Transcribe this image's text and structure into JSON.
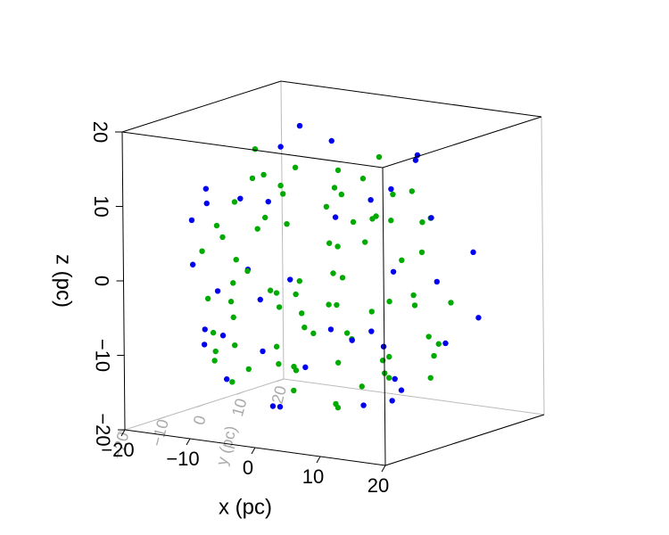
{
  "chart_data": {
    "type": "scatter3d",
    "xlabel": "x (pc)",
    "ylabel": "y (pc)",
    "zlabel": "z (pc)",
    "xlim": [
      -20,
      20
    ],
    "ylim": [
      -20,
      20
    ],
    "zlim": [
      -20,
      20
    ],
    "xticks": [
      {
        "value": -20,
        "label": "−20"
      },
      {
        "value": -10,
        "label": "−10"
      },
      0,
      10,
      20
    ],
    "yticks": [
      {
        "value": -20,
        "label": "−20"
      },
      {
        "value": -10,
        "label": "−10"
      },
      0,
      10,
      20
    ],
    "zticks": [
      {
        "value": -20,
        "label": "−20"
      },
      {
        "value": -10,
        "label": "−10"
      },
      0,
      10,
      20
    ],
    "series": [
      {
        "color": "#00aa00",
        "x": [
          0,
          5,
          -7,
          10,
          -12,
          3,
          -4,
          14,
          -9,
          6,
          -2,
          11,
          -15,
          8,
          -5,
          1,
          -10,
          13,
          -3,
          7,
          -13,
          2,
          -8,
          15,
          -1,
          9,
          -11,
          4,
          -6,
          12,
          -14,
          0,
          6,
          -9,
          16,
          -3,
          10,
          -16,
          3,
          -7,
          8,
          -12,
          1,
          -4,
          14,
          -10,
          5,
          -15,
          11,
          -2,
          7,
          -8,
          13,
          -5,
          2,
          -11,
          9,
          -13,
          4,
          -6,
          12,
          -1,
          15,
          -9,
          6,
          -14,
          3,
          -7,
          10,
          -3,
          8,
          -12,
          0,
          -5,
          16,
          -10,
          4,
          -16,
          11,
          -4
        ],
        "y": [
          0,
          -3,
          2,
          6,
          -5,
          -10,
          8,
          1,
          -11,
          4,
          -6,
          -8,
          3,
          -12,
          -2,
          13,
          9,
          -4,
          -14,
          9,
          -9,
          -1,
          -7,
          5,
          5,
          -2,
          1,
          -15,
          11,
          -10,
          -2,
          -8,
          2,
          -13,
          -6,
          4,
          10,
          -3,
          -4,
          -10,
          -5,
          6,
          -16,
          -5,
          -9,
          -3,
          7,
          -7,
          2,
          -11,
          -13,
          3,
          3,
          -17,
          9,
          -12,
          -7,
          4,
          -2,
          -6,
          5,
          2,
          -2,
          -15,
          -9,
          -10,
          6,
          -1,
          -14,
          -9,
          1,
          -6,
          -13,
          7,
          -1,
          -8,
          -6,
          1,
          -11,
          -3
        ],
        "z": [
          0,
          8,
          -4,
          3,
          9,
          -6,
          12,
          -7,
          -3,
          -14,
          15,
          10,
          -2,
          -9,
          -16,
          5,
          -10,
          4,
          8,
          -5,
          -8,
          11,
          13,
          -3,
          -9,
          -12,
          6,
          2,
          1,
          -2,
          -11,
          -4,
          16,
          6,
          0,
          3,
          -10,
          5,
          -17,
          -12,
          6,
          -7,
          -7,
          7,
          -8,
          16,
          10,
          -4,
          12,
          -1,
          12,
          -14,
          -13,
          1,
          -13,
          -11,
          15,
          11,
          -8,
          -2,
          8,
          -18,
          9,
          -9,
          -2,
          3,
          7,
          10,
          3,
          -11,
          -3,
          -15,
          14,
          -6,
          -9,
          2,
          13,
          -8,
          -12,
          -13
        ]
      },
      {
        "color": "#0000ee",
        "x": [
          12,
          -14,
          5,
          -18,
          8,
          -3,
          16,
          -10,
          2,
          -7,
          18,
          -16,
          11,
          -5,
          14,
          -19,
          6,
          -9,
          3,
          -12,
          17,
          -2,
          10,
          -15,
          7,
          -6,
          13,
          -17,
          1,
          -8,
          15,
          -11,
          9,
          -4,
          19,
          -13,
          4,
          -1,
          12,
          -18
        ],
        "y": [
          -10,
          5,
          -19,
          -6,
          15,
          -8,
          -11,
          -16,
          12,
          -4,
          7,
          10,
          3,
          -15,
          -6,
          2,
          -17,
          14,
          -5,
          -12,
          -3,
          18,
          -9,
          -8,
          10,
          -18,
          14,
          -4,
          -20,
          5,
          -12,
          -9,
          -14,
          16,
          -5,
          -14,
          8,
          -12,
          -15,
          8
        ],
        "z": [
          13,
          -13,
          3,
          6,
          -11,
          18,
          4,
          -6,
          -16,
          -18,
          -5,
          6,
          16,
          12,
          -13,
          -5,
          -9,
          -11,
          19,
          10,
          10,
          8,
          -15,
          -10,
          15,
          -6,
          2,
          10,
          0,
          18,
          -6,
          -14,
          11,
          -11,
          2,
          2,
          -18,
          -16,
          -5,
          -3
        ]
      }
    ]
  }
}
